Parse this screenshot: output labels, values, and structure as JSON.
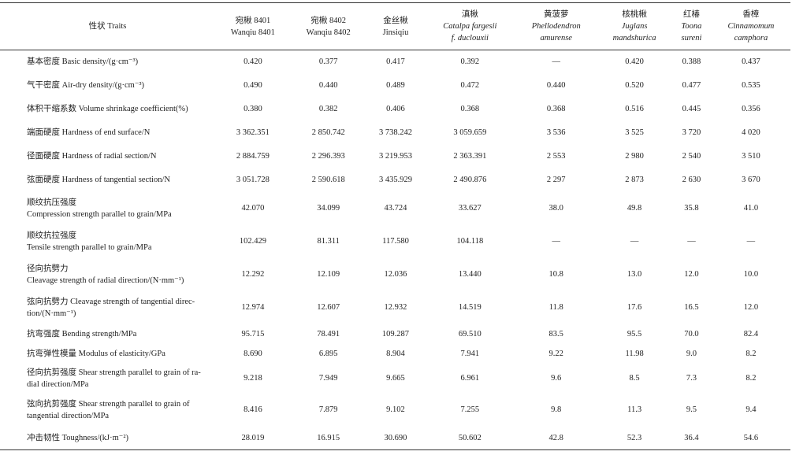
{
  "table": {
    "trait_header": "性状 Traits",
    "columns": [
      {
        "name": "宛楸 8401",
        "latin": [
          "Wanqiu 8401"
        ],
        "italic": false
      },
      {
        "name": "宛楸 8402",
        "latin": [
          "Wanqiu 8402"
        ],
        "italic": false
      },
      {
        "name": "金丝楸",
        "latin": [
          "Jinsiqiu"
        ],
        "italic": false
      },
      {
        "name": "滇楸",
        "latin": [
          "Catalpa fargesii",
          "f. duclouxii"
        ],
        "italic": true
      },
      {
        "name": "黄菠萝",
        "latin": [
          "Phellodendron",
          "amurense"
        ],
        "italic": true
      },
      {
        "name": "核桃楸",
        "latin": [
          "Juglans",
          "mandshurica"
        ],
        "italic": true
      },
      {
        "name": "红椿",
        "latin": [
          "Toona",
          "sureni"
        ],
        "italic": true
      },
      {
        "name": "香樟",
        "latin": [
          "Cinnamomum",
          "camphora"
        ],
        "italic": true
      }
    ],
    "rows": [
      {
        "trait": [
          "基本密度 Basic density/(g·cm⁻³)"
        ],
        "values": [
          "0.420",
          "0.377",
          "0.417",
          "0.392",
          "—",
          "0.420",
          "0.388",
          "0.437"
        ]
      },
      {
        "trait": [
          "气干密度 Air-dry density/(g·cm⁻³)"
        ],
        "values": [
          "0.490",
          "0.440",
          "0.489",
          "0.472",
          "0.440",
          "0.520",
          "0.477",
          "0.535"
        ]
      },
      {
        "trait": [
          "体积干缩系数 Volume shrinkage coefficient(%)"
        ],
        "values": [
          "0.380",
          "0.382",
          "0.406",
          "0.368",
          "0.368",
          "0.516",
          "0.445",
          "0.356"
        ]
      },
      {
        "trait": [
          "端面硬度 Hardness of end surface/N"
        ],
        "values": [
          "3 362.351",
          "2 850.742",
          "3 738.242",
          "3 059.659",
          "3 536",
          "3 525",
          "3 720",
          "4 020"
        ]
      },
      {
        "trait": [
          "径面硬度 Hardness of radial section/N"
        ],
        "values": [
          "2 884.759",
          "2 296.393",
          "3 219.953",
          "2 363.391",
          "2 553",
          "2 980",
          "2 540",
          "3 510"
        ]
      },
      {
        "trait": [
          "弦面硬度 Hardness of tangential section/N"
        ],
        "values": [
          "3 051.728",
          "2 590.618",
          "3 435.929",
          "2 490.876",
          "2 297",
          "2 873",
          "2 630",
          "3 670"
        ]
      },
      {
        "trait": [
          "顺纹抗压强度",
          "Compression strength parallel to grain/MPa"
        ],
        "values": [
          "42.070",
          "34.099",
          "43.724",
          "33.627",
          "38.0",
          "49.8",
          "35.8",
          "41.0"
        ]
      },
      {
        "trait": [
          "顺纹抗拉强度",
          "Tensile strength parallel to grain/MPa"
        ],
        "values": [
          "102.429",
          "81.311",
          "117.580",
          "104.118",
          "—",
          "—",
          "—",
          "—"
        ]
      },
      {
        "trait": [
          "径向抗劈力",
          "Cleavage strength of radial direction/(N·mm⁻¹)"
        ],
        "values": [
          "12.292",
          "12.109",
          "12.036",
          "13.440",
          "10.8",
          "13.0",
          "12.0",
          "10.0"
        ]
      },
      {
        "trait": [
          "弦向抗劈力 Cleavage strength of tangential direc-",
          "tion/(N·mm⁻¹)"
        ],
        "values": [
          "12.974",
          "12.607",
          "12.932",
          "14.519",
          "11.8",
          "17.6",
          "16.5",
          "12.0"
        ]
      },
      {
        "trait": [
          "抗弯强度 Bending strength/MPa"
        ],
        "values": [
          "95.715",
          "78.491",
          "109.287",
          "69.510",
          "83.5",
          "95.5",
          "70.0",
          "82.4"
        ]
      },
      {
        "trait": [
          "抗弯弹性模量 Modulus of elasticity/GPa"
        ],
        "values": [
          "8.690",
          "6.895",
          "8.904",
          "7.941",
          "9.22",
          "11.98",
          "9.0",
          "8.2"
        ]
      },
      {
        "trait": [
          "径向抗剪强度 Shear strength parallel to grain of ra-",
          "dial direction/MPa"
        ],
        "values": [
          "9.218",
          "7.949",
          "9.665",
          "6.961",
          "9.6",
          "8.5",
          "7.3",
          "8.2"
        ]
      },
      {
        "trait": [
          "弦向抗剪强度 Shear strength parallel to grain of",
          "tangential direction/MPa"
        ],
        "values": [
          "8.416",
          "7.879",
          "9.102",
          "7.255",
          "9.8",
          "11.3",
          "9.5",
          "9.4"
        ]
      },
      {
        "trait": [
          "冲击韧性 Toughness/(kJ·m⁻²)"
        ],
        "values": [
          "28.019",
          "16.915",
          "30.690",
          "50.602",
          "42.8",
          "52.3",
          "36.4",
          "54.6"
        ]
      }
    ]
  }
}
